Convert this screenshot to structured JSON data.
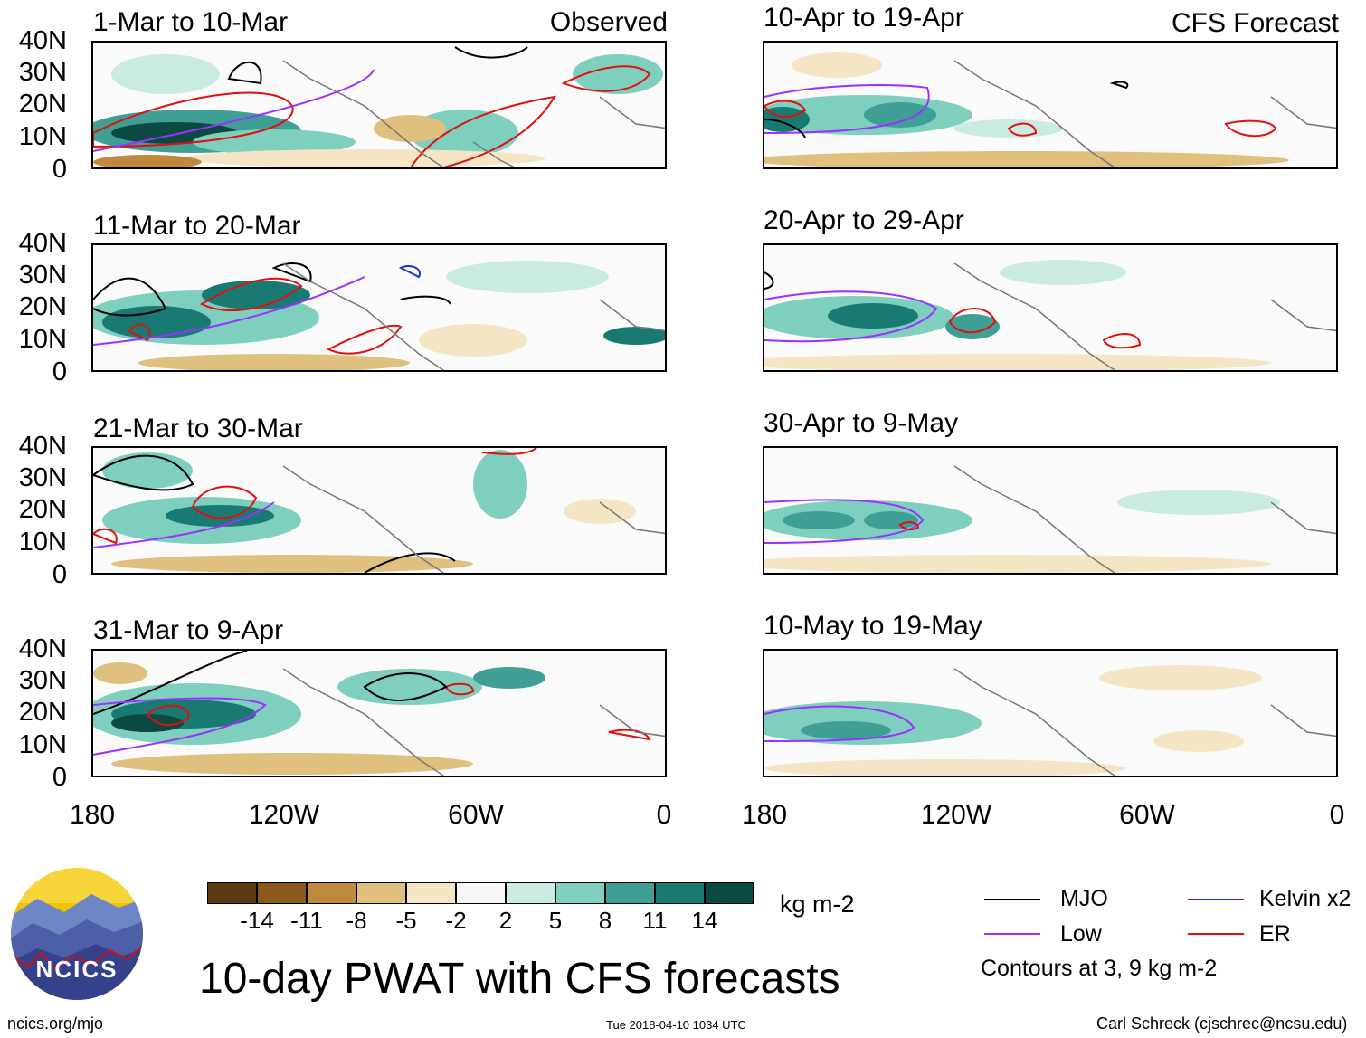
{
  "panels": [
    {
      "title": "1-Mar to 10-Mar",
      "tag": "Observed"
    },
    {
      "title": "11-Mar to 20-Mar",
      "tag": ""
    },
    {
      "title": "21-Mar to 30-Mar",
      "tag": ""
    },
    {
      "title": "31-Mar to 9-Apr",
      "tag": ""
    },
    {
      "title": "10-Apr to 19-Apr",
      "tag": "CFS Forecast"
    },
    {
      "title": "20-Apr to 29-Apr",
      "tag": ""
    },
    {
      "title": "30-Apr to 9-May",
      "tag": ""
    },
    {
      "title": "10-May to 19-May",
      "tag": ""
    }
  ],
  "lat_labels": [
    "40N",
    "30N",
    "20N",
    "10N",
    "0"
  ],
  "lon_labels": [
    "180",
    "120W",
    "60W",
    "0"
  ],
  "colorbar": {
    "colors": [
      "#5a3a12",
      "#8a5a1c",
      "#c08a3e",
      "#dfc07e",
      "#f4e6c4",
      "#f7f7f7",
      "#c9ebe2",
      "#7fcfbf",
      "#3f9f95",
      "#187a73",
      "#0a4a42"
    ],
    "ticks": [
      "-14",
      "-11",
      "-8",
      "-5",
      "-2",
      "2",
      "5",
      "8",
      "11",
      "14"
    ],
    "units": "kg m-2"
  },
  "title": "10-day PWAT with CFS forecasts",
  "logo_text": "NCICS",
  "legend": {
    "items": [
      {
        "label": "MJO",
        "color": "#000000"
      },
      {
        "label": "Kelvin x2",
        "color": "#1f2fd0"
      },
      {
        "label": "Low",
        "color": "#9b30ff"
      },
      {
        "label": "ER",
        "color": "#e01010"
      }
    ],
    "note": "Contours at 3, 9 kg m-2"
  },
  "footer": {
    "left": "ncics.org/mjo",
    "center": "Tue 2018-04-10 1034 UTC",
    "right": "Carl Schreck (cjschrec@ncsu.edu)"
  }
}
